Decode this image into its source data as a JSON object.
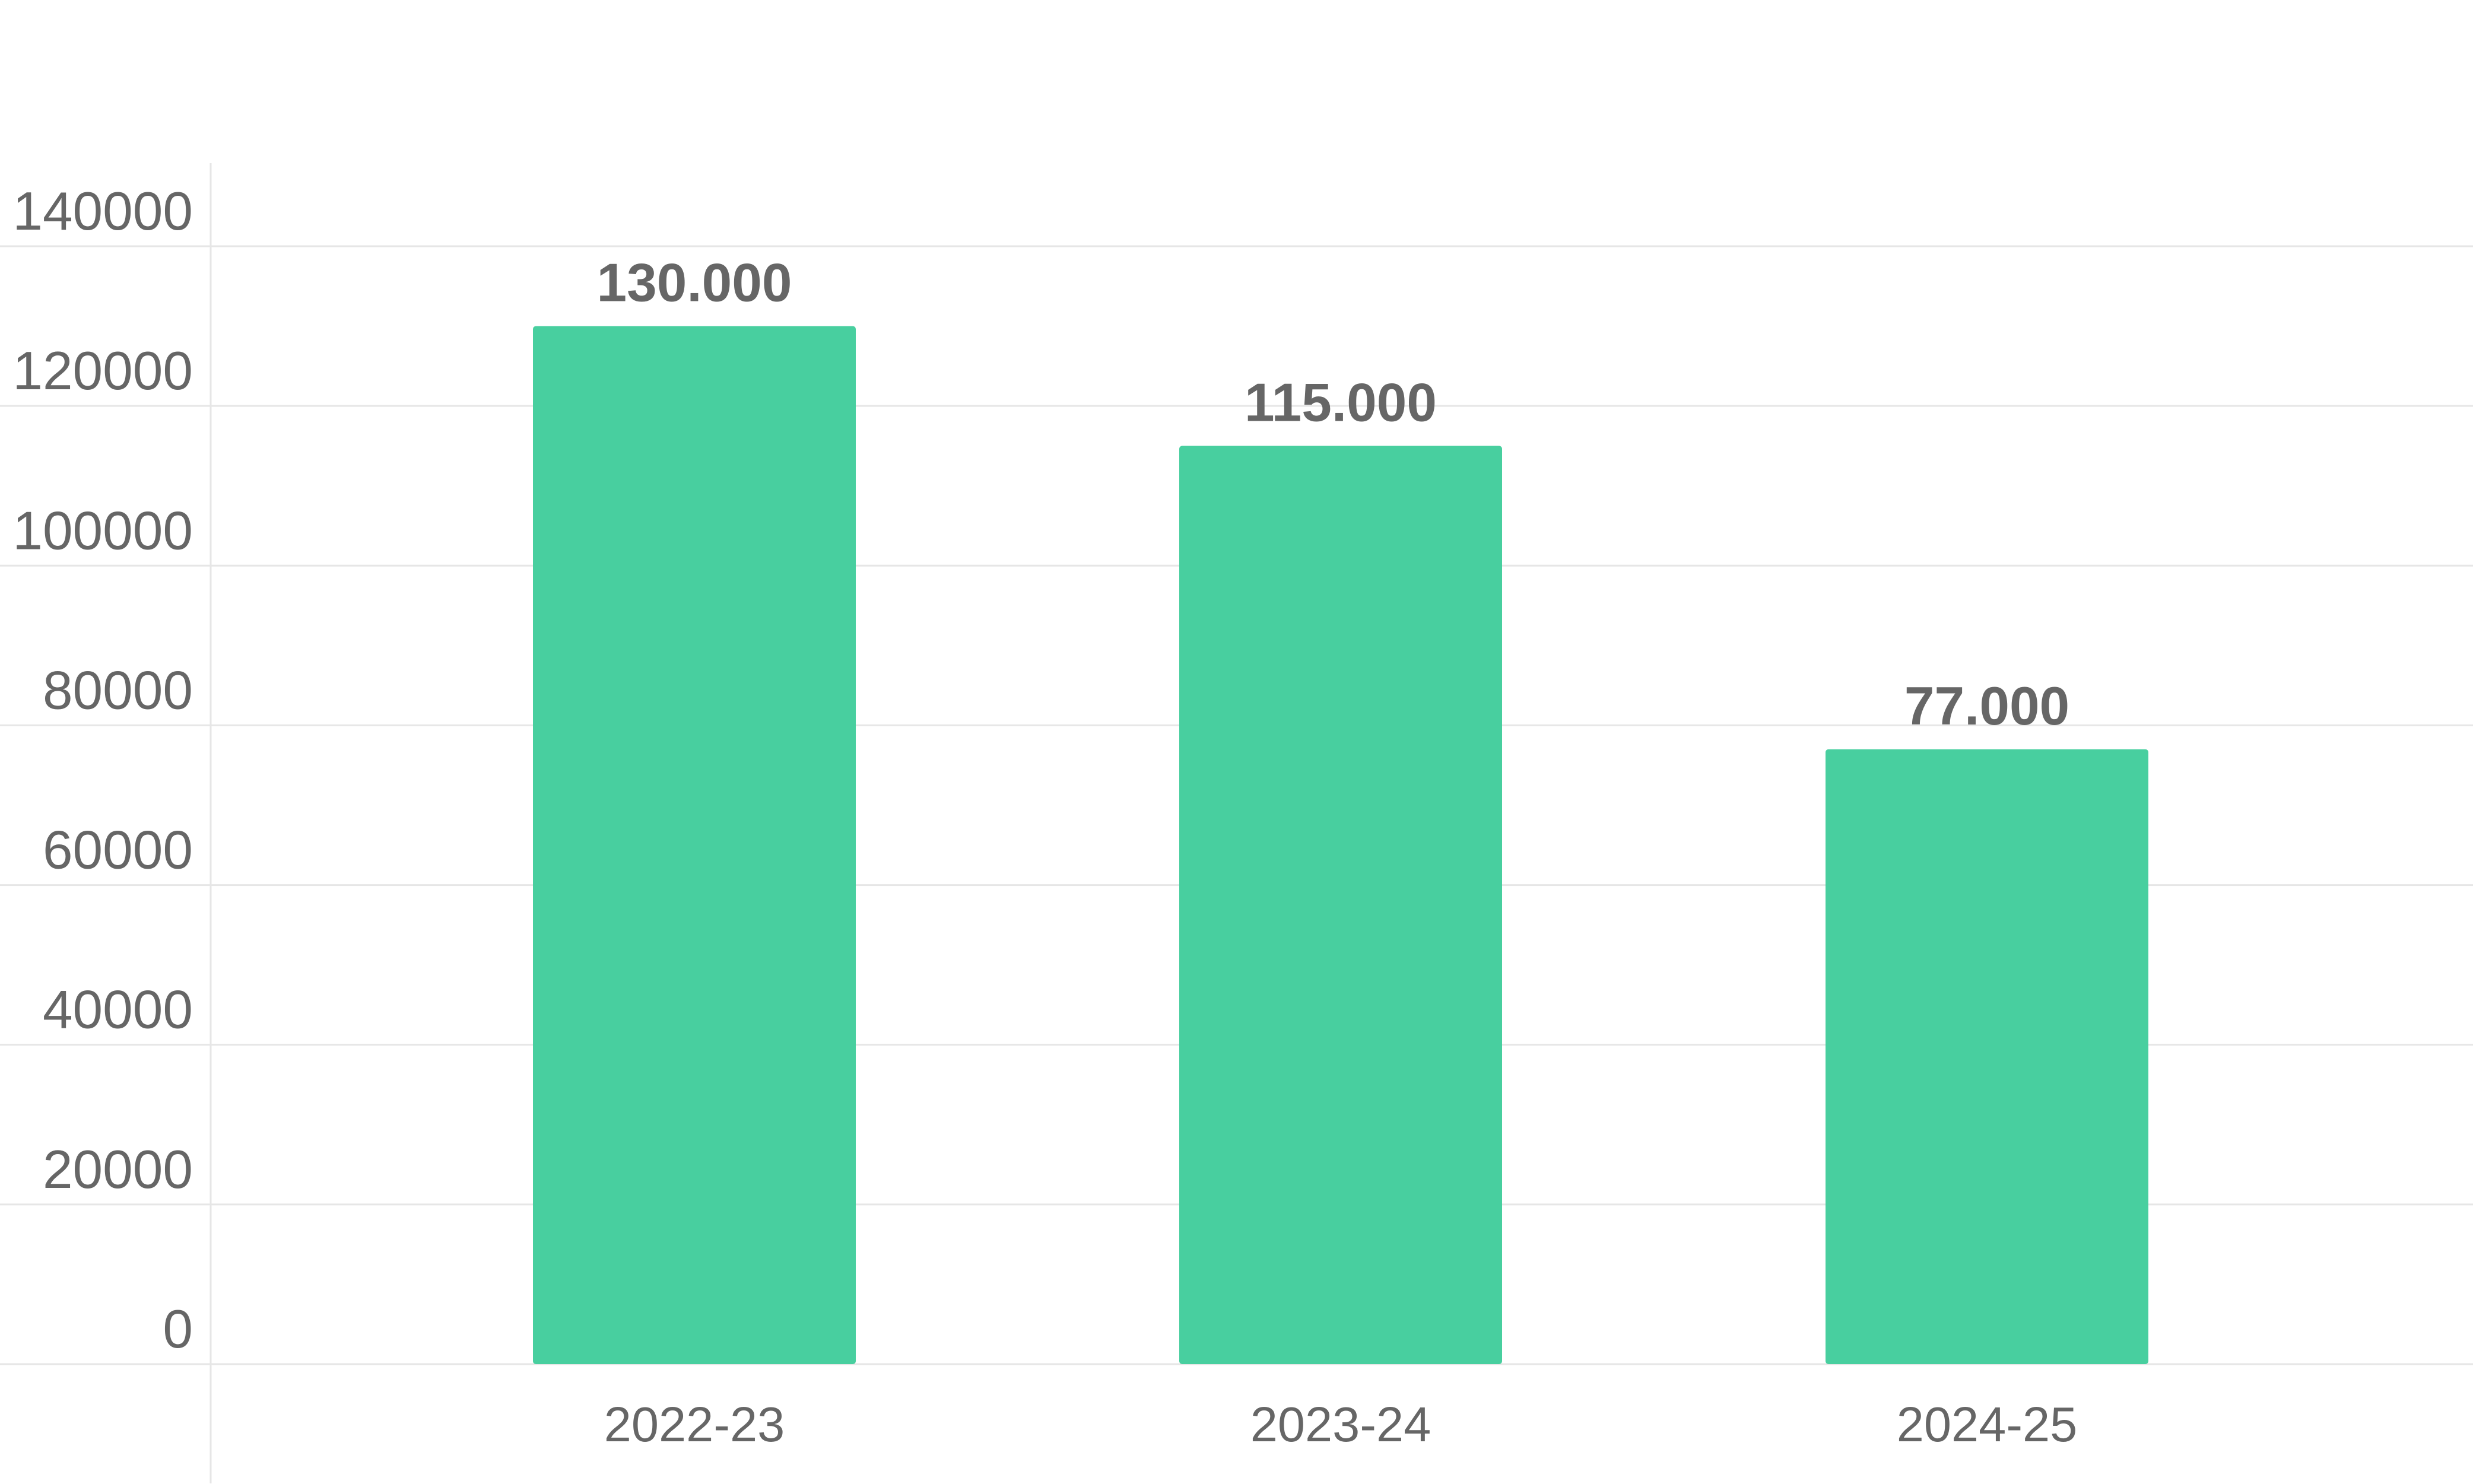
{
  "chart_data": {
    "type": "bar",
    "title": "",
    "xlabel": "",
    "ylabel": "",
    "categories": [
      "2022-23",
      "2023-24",
      "2024-25"
    ],
    "values": [
      130000,
      115000,
      77000
    ],
    "value_labels": [
      "130.000",
      "115.000",
      "77.000"
    ],
    "ylim": [
      0,
      140000
    ],
    "y_ticks": [
      0,
      20000,
      40000,
      60000,
      80000,
      100000,
      120000,
      140000
    ],
    "y_tick_labels": [
      "0",
      "20000",
      "40000",
      "60000",
      "80000",
      "100000",
      "120000",
      "140000"
    ],
    "grid": true,
    "legend": "none",
    "colors": {
      "bar": "#48cf9f",
      "grid": "#e6e6e6",
      "text": "#666666"
    }
  }
}
